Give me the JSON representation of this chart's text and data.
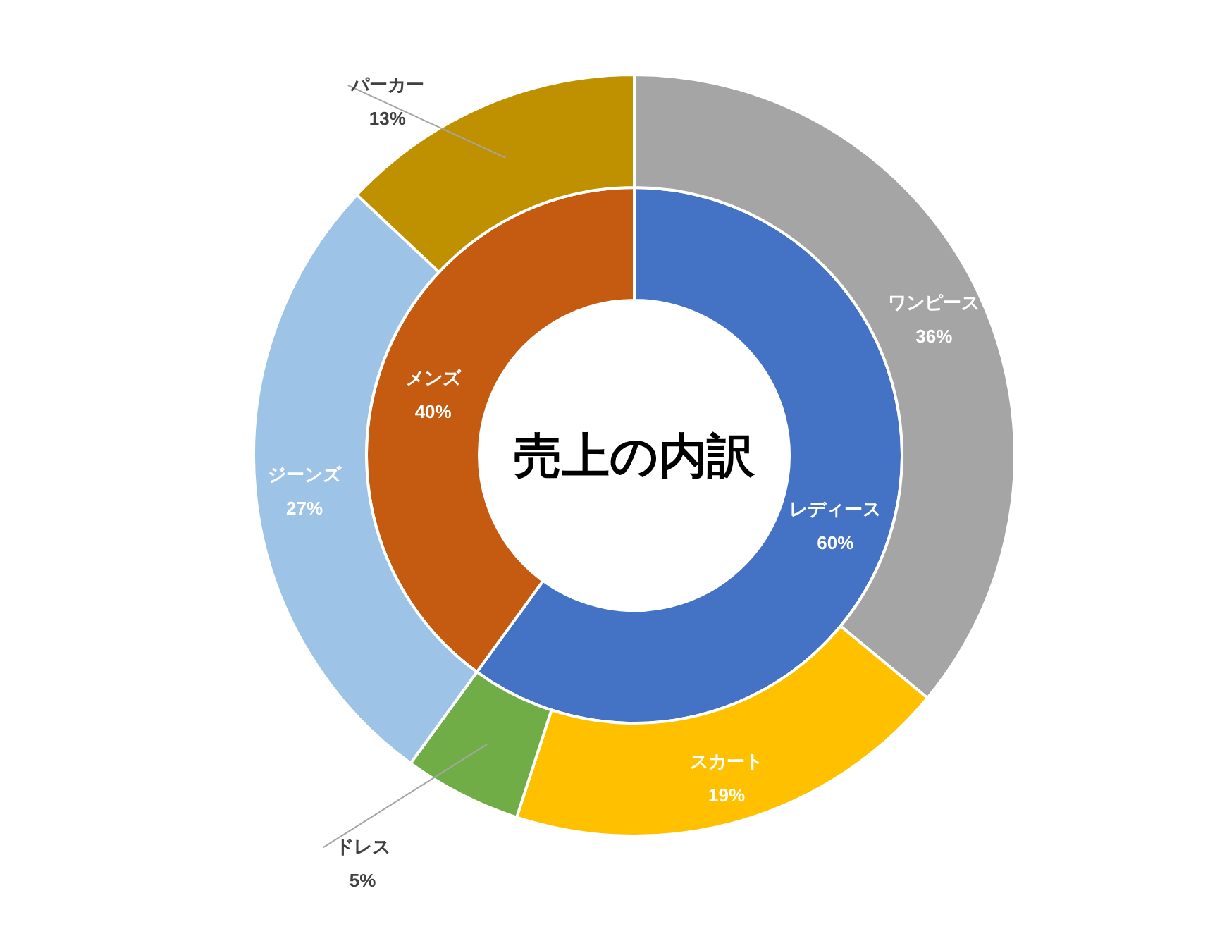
{
  "chart_data": [
    {
      "type": "donut",
      "title": "売上の内訳",
      "categories": [
        "レディース",
        "メンズ"
      ],
      "values": [
        60,
        40
      ],
      "colors": [
        "#4472c4",
        "#c55a11"
      ],
      "value_labels": [
        "60%",
        "40%"
      ]
    },
    {
      "type": "donut",
      "categories": [
        "ワンピース",
        "スカート",
        "ドレス",
        "ジーンズ",
        "パーカー"
      ],
      "values": [
        36,
        19,
        5,
        27,
        13
      ],
      "colors": [
        "#a5a5a5",
        "#ffc000",
        "#70ad47",
        "#9dc3e6",
        "#bf9000"
      ],
      "value_labels": [
        "36%",
        "19%",
        "5%",
        "27%",
        "13%"
      ]
    }
  ]
}
